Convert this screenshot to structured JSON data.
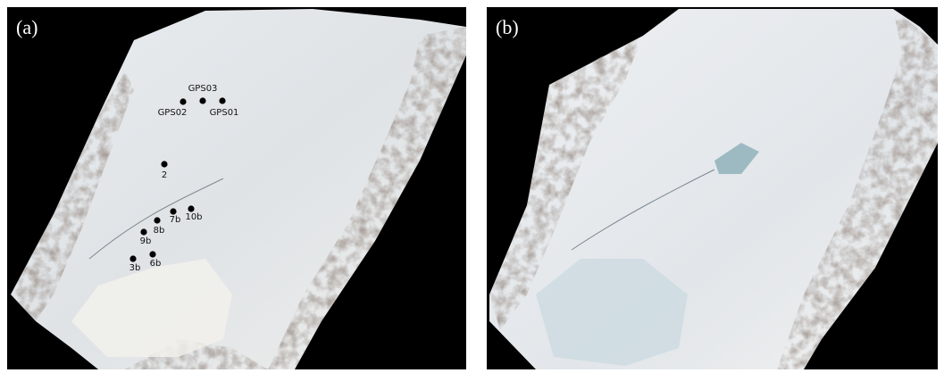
{
  "panels": [
    {
      "label": "(a)",
      "points": [
        {
          "label": "GPS02"
        },
        {
          "label": "GPS03"
        },
        {
          "label": "GPS01"
        },
        {
          "label": "2"
        },
        {
          "label": "8b"
        },
        {
          "label": "7b"
        },
        {
          "label": "10b"
        },
        {
          "label": "9b"
        },
        {
          "label": "3b"
        },
        {
          "label": "6b"
        }
      ]
    },
    {
      "label": "(b)",
      "points": []
    }
  ]
}
